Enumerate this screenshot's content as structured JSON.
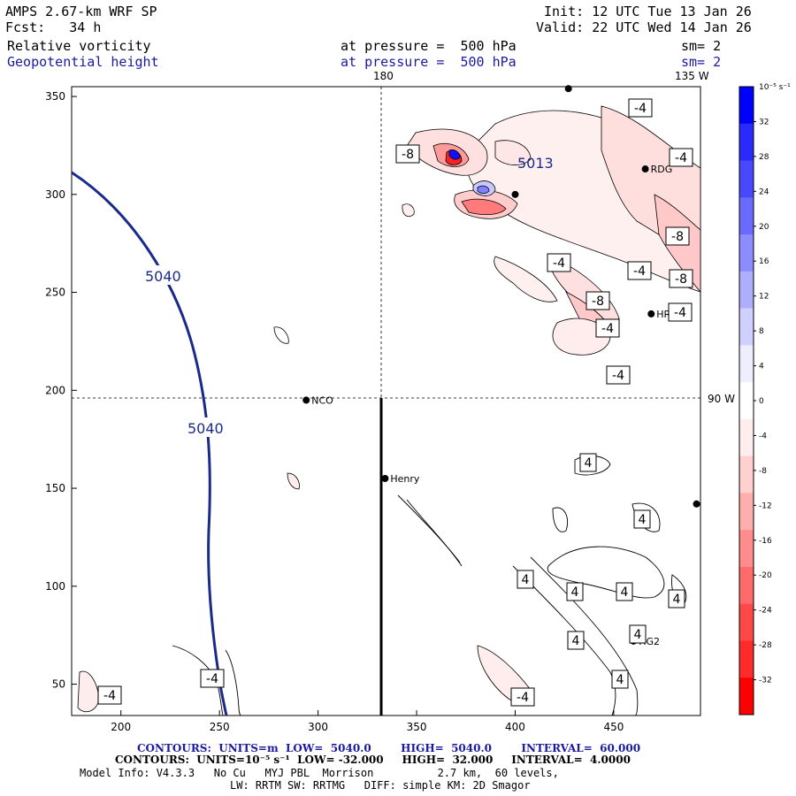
{
  "header": {
    "model": "AMPS 2.67-km WRF SP",
    "fcst": "Fcst:   34 h",
    "init": "Init: 12 UTC Tue 13 Jan 26",
    "valid": "Valid: 22 UTC Wed 14 Jan 26",
    "field1_name": "Relative vorticity",
    "field1_level": "at pressure =  500 hPa",
    "field1_sm": "sm= 2",
    "field2_name": "Geopotential height",
    "field2_level": "at pressure =  500 hPa",
    "field2_sm": "sm= 2"
  },
  "map": {
    "lon_labels": {
      "top_180": "180",
      "top_135w": "135 W",
      "right_90w": "90 W"
    },
    "x_ticks": [
      "200",
      "250",
      "300",
      "350",
      "400",
      "450"
    ],
    "y_ticks": [
      "350",
      "300",
      "250",
      "200",
      "150",
      "100",
      "50"
    ],
    "x_range": [
      175,
      494
    ],
    "y_range": [
      34,
      355
    ],
    "stations": [
      {
        "name": "NCO",
        "x": 294,
        "y": 195
      },
      {
        "name": "Henry",
        "x": 334,
        "y": 155
      },
      {
        "name": "RDG",
        "x": 466,
        "y": 313
      },
      {
        "name": "HRC",
        "x": 469,
        "y": 239
      },
      {
        "name": "HG2",
        "x": 460,
        "y": 72
      },
      {
        "name": "",
        "x": 400,
        "y": 300
      },
      {
        "name": "",
        "x": 427,
        "y": 354
      },
      {
        "name": "",
        "x": 492,
        "y": 142
      }
    ],
    "height_labels": [
      "5040",
      "5040",
      "5013"
    ],
    "vort_labels": [
      "-8",
      "-4",
      "-8",
      "-4",
      "-4",
      "-8",
      "-8",
      "-4",
      "-4",
      "-4",
      "-4",
      "-4",
      "4",
      "4",
      "4",
      "4",
      "4",
      "4",
      "4",
      "4",
      "4",
      "-4",
      "-4"
    ]
  },
  "colorbar": {
    "unit_label": "10⁻⁵ s⁻¹",
    "ticks": [
      "32",
      "28",
      "24",
      "20",
      "16",
      "12",
      "8",
      "4",
      "0",
      "-4",
      "-8",
      "-12",
      "-16",
      "-20",
      "-24",
      "-28",
      "-32"
    ],
    "colors": [
      "#0000ff",
      "#2a2aff",
      "#4848ff",
      "#6a6aff",
      "#8c8cff",
      "#aeaeff",
      "#d0d0ff",
      "#eeeeff",
      "#ffffff",
      "#ffeeee",
      "#ffd0d0",
      "#ffaeae",
      "#ff8c8c",
      "#ff6a6a",
      "#ff4848",
      "#ff2a2a",
      "#ff0000"
    ]
  },
  "footer": {
    "line1": "CONTOURS:  UNITS=m  LOW=  5040.0        HIGH=  5040.0        INTERVAL=  60.000",
    "line2": "CONTOURS:  UNITS=10⁻⁵ s⁻¹  LOW= -32.000     HIGH=  32.000     INTERVAL=  4.0000",
    "line3": "Model Info: V4.3.3   No Cu   MYJ PBL  Morrison          2.7 km,  60 levels,",
    "line4": "LW: RRTM SW: RRTMG   DIFF: simple KM: 2D Smagor"
  }
}
